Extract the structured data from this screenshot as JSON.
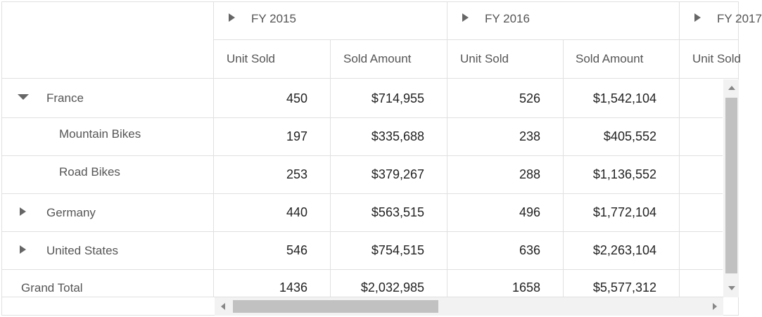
{
  "headers": {
    "years": [
      "FY 2015",
      "FY 2016",
      "FY 2017"
    ],
    "measures": [
      "Unit Sold",
      "Sold Amount",
      "Unit Sold",
      "Sold Amount",
      "Unit Sold"
    ]
  },
  "rows": [
    {
      "label": "France",
      "state": "expanded",
      "values": [
        "450",
        "$714,955",
        "526",
        "$1,542,104"
      ]
    },
    {
      "label": "Mountain Bikes",
      "state": "child",
      "values": [
        "197",
        "$335,688",
        "238",
        "$405,552"
      ]
    },
    {
      "label": "Road Bikes",
      "state": "child",
      "values": [
        "253",
        "$379,267",
        "288",
        "$1,136,552"
      ]
    },
    {
      "label": "Germany",
      "state": "collapsed",
      "values": [
        "440",
        "$563,515",
        "496",
        "$1,772,104"
      ]
    },
    {
      "label": "United States",
      "state": "collapsed",
      "values": [
        "546",
        "$754,515",
        "636",
        "$2,263,104"
      ]
    }
  ],
  "grand_total": {
    "label": "Grand Total",
    "values": [
      "1436",
      "$2,032,985",
      "1658",
      "$5,577,312"
    ]
  },
  "colors": {
    "border": "#e0e0e0",
    "header_text": "#555555",
    "scroll_thumb": "#c1c1c1"
  }
}
